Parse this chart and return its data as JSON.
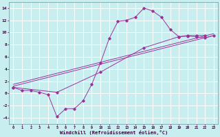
{
  "bg_color": "#c8eef0",
  "grid_color": "#aacccc",
  "line_color": "#993399",
  "xlabel": "Windchill (Refroidissement éolien,°C)",
  "xlim": [
    -0.5,
    23.5
  ],
  "ylim": [
    -5.0,
    15.0
  ],
  "yticks": [
    -4,
    -2,
    0,
    2,
    4,
    6,
    8,
    10,
    12,
    14
  ],
  "xticks": [
    0,
    1,
    2,
    3,
    4,
    5,
    6,
    7,
    8,
    9,
    10,
    11,
    12,
    13,
    14,
    15,
    16,
    17,
    18,
    19,
    20,
    21,
    22,
    23
  ],
  "line1_x": [
    0,
    1,
    2,
    3,
    4,
    5,
    6,
    7,
    8,
    9,
    10,
    11,
    12,
    13,
    14,
    15,
    16,
    17,
    18,
    19,
    20,
    21,
    22
  ],
  "line1_y": [
    1.0,
    0.5,
    0.5,
    0.2,
    -0.2,
    -3.8,
    -2.5,
    -2.5,
    -1.2,
    1.5,
    5.0,
    9.0,
    11.8,
    12.0,
    12.5,
    14.0,
    13.5,
    12.5,
    10.5,
    9.3,
    9.5,
    9.5,
    9.5
  ],
  "line2_x": [
    0,
    23
  ],
  "line2_y": [
    1.2,
    9.5
  ],
  "line3_x": [
    0,
    23
  ],
  "line3_y": [
    1.5,
    9.8
  ],
  "line4_x": [
    0,
    5,
    10,
    15,
    19,
    20,
    21,
    22,
    23
  ],
  "line4_y": [
    1.0,
    0.2,
    3.5,
    7.5,
    9.3,
    9.4,
    9.3,
    9.1,
    9.5
  ]
}
